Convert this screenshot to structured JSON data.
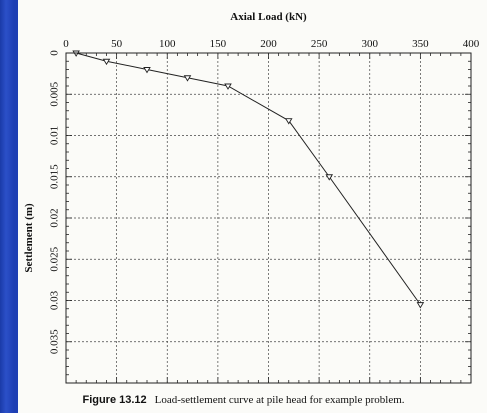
{
  "caption": {
    "label": "Figure 13.12",
    "text": "Load-settlement curve at pile head for example problem."
  },
  "chart_data": {
    "type": "line",
    "title": "",
    "xlabel": "Axial Load  (kN)",
    "ylabel": "Settlement  (m)",
    "xlim": [
      0,
      400
    ],
    "ylim": [
      0,
      0.04
    ],
    "y_inverted": true,
    "x_axis_position": "top",
    "grid": true,
    "grid_style": "dashed",
    "x_ticks": [
      "0",
      "50",
      "100",
      "150",
      "200",
      "250",
      "300",
      "350",
      "400"
    ],
    "y_ticks": [
      "0",
      "0.005",
      "0.01",
      "0.015",
      "0.02",
      "0.025",
      "0.03",
      "0.035"
    ],
    "marker": "triangle-down",
    "series": [
      {
        "name": "",
        "color": "#222222",
        "points": [
          {
            "x": 10,
            "y": 0.0
          },
          {
            "x": 40,
            "y": 0.001
          },
          {
            "x": 80,
            "y": 0.002
          },
          {
            "x": 120,
            "y": 0.003
          },
          {
            "x": 160,
            "y": 0.004
          },
          {
            "x": 220,
            "y": 0.0082
          },
          {
            "x": 260,
            "y": 0.015
          },
          {
            "x": 350,
            "y": 0.0305
          }
        ]
      }
    ]
  }
}
